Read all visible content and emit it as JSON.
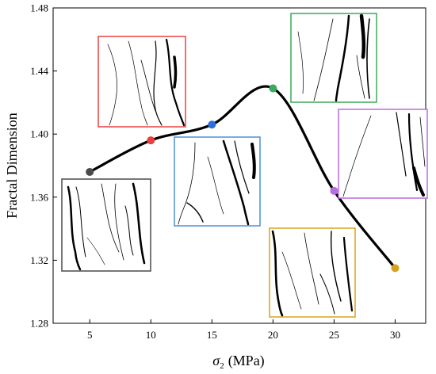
{
  "chart_data": {
    "type": "line",
    "xlabel_symbol": "σ",
    "xlabel_sub": "2",
    "xlabel_unit": "(MPa)",
    "ylabel": "Fractal Dimension",
    "xlim": [
      2,
      32.5
    ],
    "ylim": [
      1.28,
      1.48
    ],
    "xticks": [
      5,
      10,
      15,
      20,
      25,
      30
    ],
    "yticks": [
      1.28,
      1.32,
      1.36,
      1.4,
      1.44,
      1.48
    ],
    "ytick_labels": [
      "1.28",
      "1.32",
      "1.36",
      "1.40",
      "1.44",
      "1.48"
    ],
    "grid": false,
    "series": [
      {
        "x": [
          5,
          10,
          15,
          20,
          25,
          30
        ],
        "values": [
          1.376,
          1.396,
          1.406,
          1.429,
          1.364,
          1.315
        ],
        "line_color": "#000000",
        "point_colors": [
          "#4a4a4a",
          "#e84040",
          "#2a6fdb",
          "#3aaa5c",
          "#b76fe0",
          "#d9a21c"
        ]
      }
    ],
    "insets": [
      {
        "id": "inset-5mpa",
        "border_color": "#4a4a4a"
      },
      {
        "id": "inset-10mpa",
        "border_color": "#e84040"
      },
      {
        "id": "inset-15mpa",
        "border_color": "#4a90d9"
      },
      {
        "id": "inset-20mpa",
        "border_color": "#3aaa5c"
      },
      {
        "id": "inset-25mpa",
        "border_color": "#b76fe0"
      },
      {
        "id": "inset-30mpa",
        "border_color": "#d9a21c"
      }
    ]
  }
}
